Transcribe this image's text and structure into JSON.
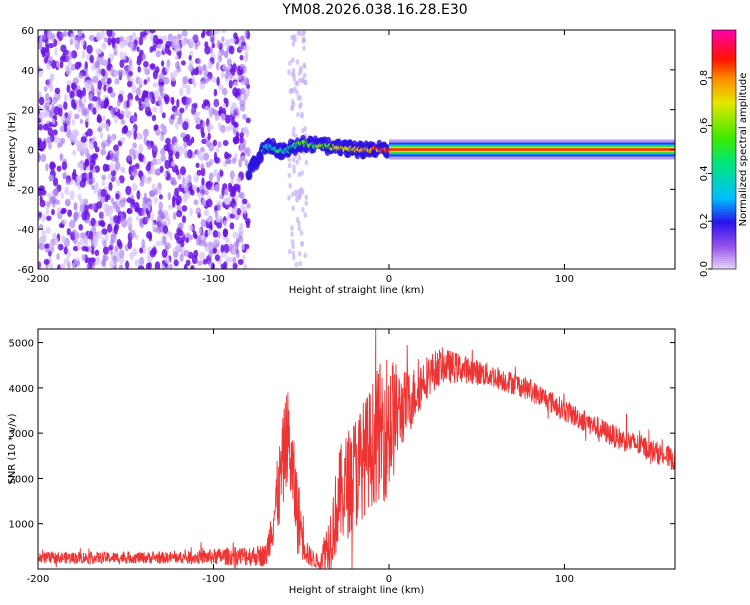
{
  "title": "YM08.2026.038.16.28.E30",
  "chart_data": [
    {
      "type": "heatmap",
      "name": "spectrogram",
      "xlabel": "Height of straight line (km)",
      "ylabel": "Frequency (Hz)",
      "xlim": [
        -200,
        163
      ],
      "ylim": [
        -60,
        60
      ],
      "xticks": [
        -200,
        -100,
        0,
        100
      ],
      "xtick_labels": [
        "-200",
        "-100",
        "0",
        "100"
      ],
      "yticks": [
        -60,
        -40,
        -20,
        0,
        20,
        40,
        60
      ],
      "ytick_labels": [
        "-60",
        "-40",
        "-20",
        "0",
        "20",
        "40",
        "60"
      ],
      "colorbar": {
        "label": "Normalized spectral amplitude",
        "range": [
          0,
          1
        ],
        "ticks": [
          0.0,
          0.2,
          0.4,
          0.6,
          0.8
        ],
        "tick_labels": [
          "0.0",
          "0.2",
          "0.4",
          "0.6",
          "0.8"
        ]
      },
      "regions": [
        {
          "name": "noise-field",
          "x_range": [
            -200,
            -80
          ],
          "y_range": [
            -60,
            60
          ],
          "amplitude": 0.1
        },
        {
          "name": "noise-column",
          "x_range": [
            -57,
            -47
          ],
          "y_range": [
            -60,
            60
          ],
          "amplitude": 0.05
        },
        {
          "name": "echo-trace",
          "x": [
            -80,
            -70,
            -60,
            -50,
            -40,
            -30,
            -20,
            -10,
            0,
            100,
            163
          ],
          "freq": [
            -12,
            2,
            -1,
            3,
            2,
            1,
            0,
            0,
            0,
            0,
            0
          ],
          "amplitude": 0.9
        }
      ]
    },
    {
      "type": "line",
      "name": "snr",
      "xlabel": "Height of straight line (km)",
      "ylabel": "SNR (10 * v/v)",
      "xlim": [
        -200,
        163
      ],
      "ylim": [
        0,
        5300
      ],
      "xticks": [
        -200,
        -100,
        0,
        100
      ],
      "xtick_labels": [
        "-200",
        "-100",
        "0",
        "100"
      ],
      "yticks": [
        1000,
        2000,
        3000,
        4000,
        5000
      ],
      "ytick_labels": [
        "1000",
        "2000",
        "3000",
        "4000",
        "5000"
      ],
      "color": "#ee3333",
      "envelope": {
        "x": [
          -200,
          -120,
          -70,
          -62,
          -58,
          -52,
          -46,
          -40,
          -34,
          -28,
          -20,
          -12,
          -6,
          0,
          6,
          12,
          20,
          30,
          45,
          60,
          75,
          90,
          100,
          115,
          130,
          145,
          163
        ],
        "snr": [
          250,
          250,
          300,
          1900,
          3000,
          1200,
          300,
          150,
          600,
          1600,
          2100,
          2600,
          3000,
          3200,
          3500,
          3700,
          4200,
          4500,
          4400,
          4250,
          4050,
          3750,
          3500,
          3200,
          2900,
          2700,
          2400
        ]
      },
      "noise": [
        130,
        130,
        250,
        1000,
        1100,
        900,
        250,
        150,
        700,
        1100,
        1300,
        1300,
        1500,
        1700,
        900,
        700,
        500,
        400,
        300,
        260,
        250,
        250,
        250,
        250,
        250,
        250,
        250
      ]
    }
  ]
}
